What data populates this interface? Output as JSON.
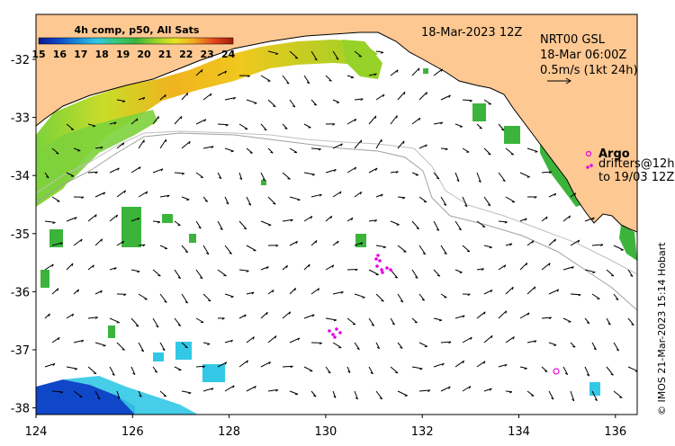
{
  "map": {
    "date_label": "18-Mar-2023 12Z",
    "colorbar": {
      "title": "4h comp, p50, All Sats",
      "ticks": [
        "15",
        "16",
        "17",
        "18",
        "19",
        "20",
        "21",
        "22",
        "23",
        "24"
      ],
      "colors": [
        "#0a1a8c",
        "#1046c8",
        "#1a8cd8",
        "#32c8e6",
        "#37c878",
        "#3cb43c",
        "#96d228",
        "#e6e61e",
        "#f0a81e",
        "#e6461e",
        "#a01e0a"
      ]
    },
    "current_info": {
      "line1": "NRT00 GSL",
      "line2": "18-Mar 06:00Z",
      "line3": "0.5m/s (1kt 24h)"
    },
    "argo": {
      "title": "Argo",
      "line1": "drifters@12h",
      "line2": "to 19/03 12Z"
    },
    "x_ticks": [
      "124",
      "126",
      "128",
      "130",
      "132",
      "134",
      "136"
    ],
    "y_ticks": [
      "-32",
      "-33",
      "-34",
      "-35",
      "-36",
      "-37",
      "-38"
    ],
    "credit": "© IMOS 21-Mar-2023 15:14 Hobart",
    "land_color": "#fdc892",
    "drifter_color": "#e600e6"
  }
}
